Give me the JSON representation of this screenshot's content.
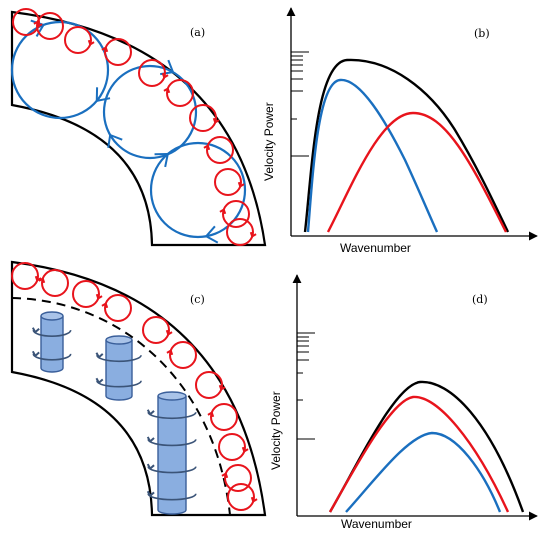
{
  "panels": {
    "a": {
      "label": "(a)"
    },
    "b": {
      "label": "(b)",
      "ylabel": "Velocity Power",
      "xlabel": "Wavenumber"
    },
    "c": {
      "label": "(c)"
    },
    "d": {
      "label": "(d)",
      "ylabel": "Velocity Power",
      "xlabel": "Wavenumber"
    }
  },
  "colors": {
    "small_eddy": "#e8141c",
    "large_eddy": "#1a6fbf",
    "total": "#000000",
    "cylinder_fill": "#8aaee0",
    "cylinder_stroke": "#3a5f9a",
    "swirl": "#3b5478"
  }
}
